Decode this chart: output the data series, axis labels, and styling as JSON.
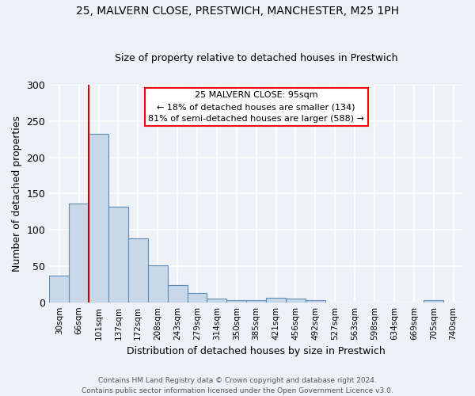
{
  "title1": "25, MALVERN CLOSE, PRESTWICH, MANCHESTER, M25 1PH",
  "title2": "Size of property relative to detached houses in Prestwich",
  "xlabel": "Distribution of detached houses by size in Prestwich",
  "ylabel": "Number of detached properties",
  "bin_labels": [
    "30sqm",
    "66sqm",
    "101sqm",
    "137sqm",
    "172sqm",
    "208sqm",
    "243sqm",
    "279sqm",
    "314sqm",
    "350sqm",
    "385sqm",
    "421sqm",
    "456sqm",
    "492sqm",
    "527sqm",
    "563sqm",
    "598sqm",
    "634sqm",
    "669sqm",
    "705sqm",
    "740sqm"
  ],
  "bar_heights": [
    37,
    136,
    232,
    132,
    88,
    51,
    24,
    13,
    5,
    3,
    3,
    6,
    5,
    3,
    0,
    0,
    0,
    0,
    0,
    3,
    0
  ],
  "bar_color": "#c8d8e8",
  "bar_edge_color": "#5b8db8",
  "red_line_color": "#cc0000",
  "annotation_text": "25 MALVERN CLOSE: 95sqm\n← 18% of detached houses are smaller (134)\n81% of semi-detached houses are larger (588) →",
  "annotation_box_color": "white",
  "annotation_box_edge_color": "red",
  "footer_text": "Contains HM Land Registry data © Crown copyright and database right 2024.\nContains public sector information licensed under the Open Government Licence v3.0.",
  "ylim": [
    0,
    300
  ],
  "yticks": [
    0,
    50,
    100,
    150,
    200,
    250,
    300
  ],
  "bg_color": "#eef2f7",
  "grid_color": "white",
  "red_line_x": 1.5
}
